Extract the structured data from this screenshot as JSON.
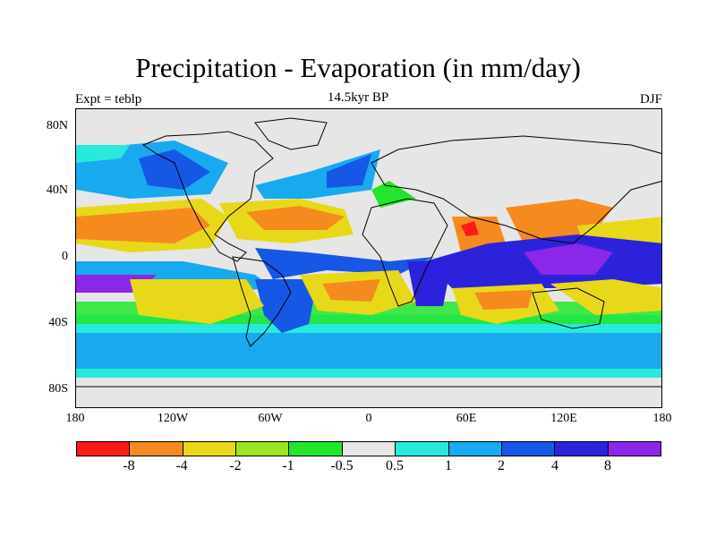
{
  "title": "Precipitation - Evaporation (in mm/day)",
  "subtitle": "14.5kyr BP",
  "left_label": "Expt = teblp",
  "right_label": "DJF",
  "map": {
    "lat_ticks": [
      "80N",
      "40N",
      "0",
      "40S",
      "80S"
    ],
    "lon_ticks": [
      "180",
      "120W",
      "60W",
      "0",
      "60E",
      "120E",
      "180"
    ]
  },
  "colorbar": {
    "colors": [
      "#ff1a1a",
      "#f58a1f",
      "#e8d81a",
      "#9ae61f",
      "#22e52e",
      "#e6e6e6",
      "#27e9dc",
      "#18a9ef",
      "#1657e6",
      "#2c22dc",
      "#8b27e8"
    ],
    "labels": [
      "-8",
      "-4",
      "-2",
      "-1",
      "-0.5",
      "0.5",
      "1",
      "2",
      "4",
      "8"
    ]
  }
}
